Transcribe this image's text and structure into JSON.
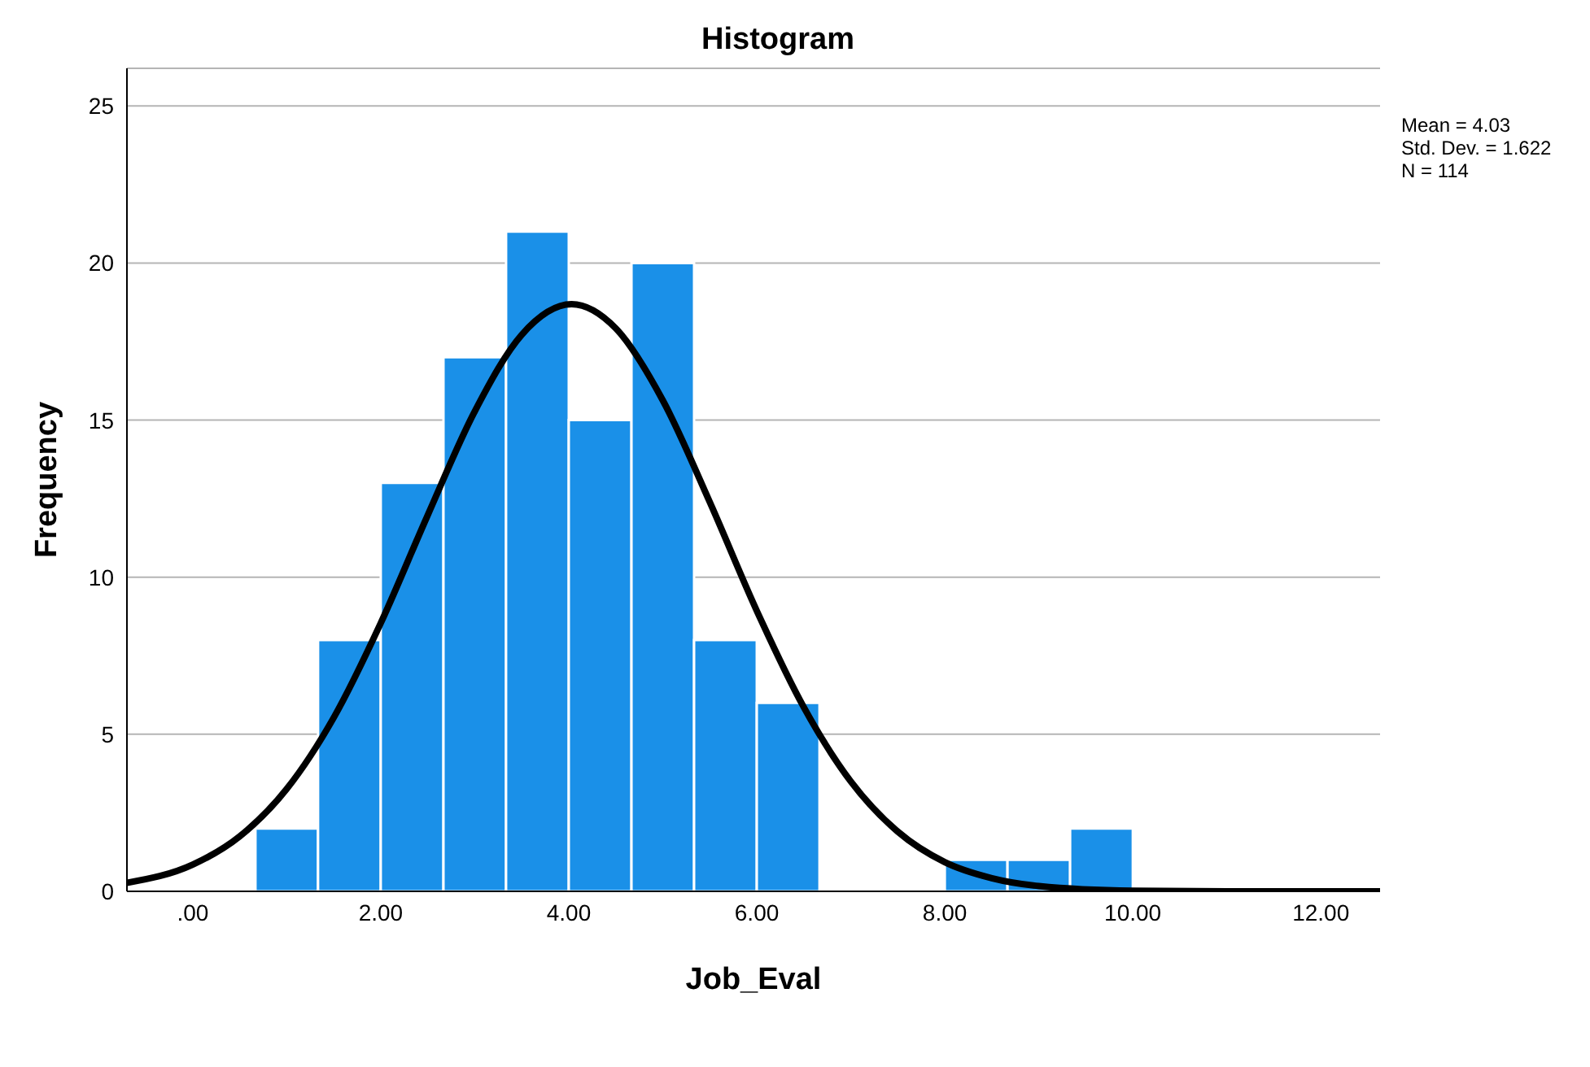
{
  "chart_data": {
    "type": "histogram",
    "title": "Histogram",
    "xlabel": "Job_Eval",
    "ylabel": "Frequency",
    "bins": [
      0.667,
      1.333,
      2,
      2.667,
      3.333,
      4,
      4.667,
      5.333,
      6,
      6.667,
      7.333,
      8,
      8.667,
      9.333,
      10
    ],
    "values": [
      2,
      8,
      13,
      17,
      21,
      15,
      20,
      8,
      6,
      0,
      0,
      1,
      1,
      2
    ],
    "color": "#1a90e8",
    "series": [
      {
        "type": "line",
        "color": "#000000",
        "x": [
          -0.7,
          0,
          0.5,
          1,
          1.5,
          2,
          2.5,
          3,
          3.5,
          4.03,
          4.5,
          5,
          5.5,
          6,
          6.5,
          7,
          7.5,
          8,
          8.5,
          9,
          10,
          11,
          12.63
        ],
        "values": [
          0.27,
          0.85,
          1.75,
          3.26,
          5.53,
          8.54,
          11.98,
          15.28,
          17.72,
          18.69,
          17.92,
          15.63,
          12.39,
          8.93,
          5.86,
          3.5,
          1.9,
          0.93,
          0.42,
          0.17,
          0.02,
          0,
          0
        ]
      }
    ],
    "xlim": [
      -0.7,
      12.63
    ],
    "xticks": [
      {
        "value": 0,
        "label": ".00"
      },
      {
        "value": 2,
        "label": "2.00"
      },
      {
        "value": 4,
        "label": "4.00"
      },
      {
        "value": 6,
        "label": "6.00"
      },
      {
        "value": 8,
        "label": "8.00"
      },
      {
        "value": 10,
        "label": "10.00"
      },
      {
        "value": 12,
        "label": "12.00"
      }
    ],
    "ylim": [
      0,
      26.2
    ],
    "yticks": [
      0,
      5,
      10,
      15,
      20,
      25
    ],
    "grid": "y",
    "marker": "none",
    "line_style": "solid",
    "annotations": [
      "Mean = 4.03",
      "Std. Dev. = 1.622",
      "N = 114"
    ]
  }
}
